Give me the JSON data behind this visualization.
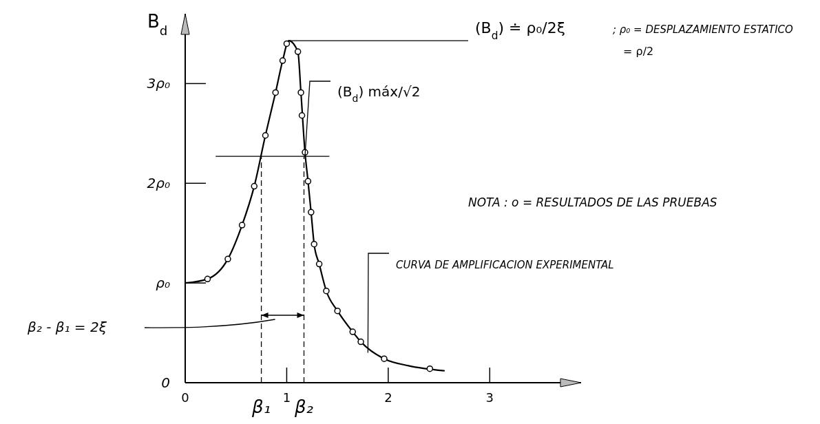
{
  "chart_data": {
    "type": "line",
    "ylabel": "B$_{d}$",
    "xlim": [
      0,
      3.9
    ],
    "ylim": [
      0,
      3.7
    ],
    "xticks": [
      0,
      1,
      2,
      3
    ],
    "yticks": [
      0,
      {
        "value": 1,
        "label": "ρ₀"
      },
      {
        "value": 2,
        "label": "2ρ₀"
      },
      {
        "value": 3,
        "label": "3ρ₀"
      }
    ],
    "series": [
      {
        "color": "#000000",
        "marker": "none",
        "line_style": "solid",
        "x": [
          0,
          0.22,
          0.42,
          0.56,
          0.68,
          0.79,
          0.89,
          0.96,
          1.02,
          1.11,
          1.14,
          1.18,
          1.21,
          1.24,
          1.27,
          1.32,
          1.39,
          1.5,
          1.65,
          1.73,
          1.96,
          2.2,
          2.55
        ],
        "values": [
          1.0,
          1.04,
          1.24,
          1.58,
          1.97,
          2.48,
          2.91,
          3.23,
          3.43,
          3.32,
          2.91,
          2.31,
          2.02,
          1.71,
          1.39,
          1.19,
          0.92,
          0.72,
          0.51,
          0.41,
          0.24,
          0.17,
          0.12
        ]
      },
      {
        "type": "scatter",
        "color": "#000000",
        "marker": "circle",
        "x": [
          0.22,
          0.42,
          0.56,
          0.68,
          0.79,
          0.89,
          0.96,
          1.0,
          1.11,
          1.14,
          1.15,
          1.18,
          1.21,
          1.24,
          1.27,
          1.32,
          1.39,
          1.5,
          1.65,
          1.73,
          1.96,
          2.41
        ],
        "values": [
          1.04,
          1.24,
          1.58,
          1.97,
          2.48,
          2.91,
          3.23,
          3.4,
          3.32,
          2.91,
          2.68,
          2.31,
          2.02,
          1.71,
          1.39,
          1.19,
          0.92,
          0.72,
          0.51,
          0.41,
          0.24,
          0.14
        ]
      }
    ],
    "ref_lines": [
      {
        "axis": "x",
        "value": 0.75,
        "label": "β₁",
        "line_style": "dashed"
      },
      {
        "axis": "x",
        "value": 1.17,
        "label": "β₂",
        "line_style": "dashed"
      },
      {
        "axis": "y",
        "value": 2.27,
        "line_style": "solid"
      }
    ],
    "annotations": [
      {
        "text": "(B$_{d}$) ≐ ρ₀/2ξ",
        "x": 1.02,
        "y": 3.43
      },
      "; ρ₀ = DESPLAZAMIENTO ESTATICO",
      "= ρ/2",
      {
        "text": "(B$_{d}$) máx/√2",
        "x": 1.18,
        "y": 2.27
      },
      "NOTA : o = RESULTADOS DE LAS PRUEBAS",
      {
        "text": "CURVA DE AMPLIFICACION EXPERIMENTAL",
        "x": 1.8,
        "y": 0.3
      },
      "β₂ - β₁ = 2ξ"
    ]
  }
}
